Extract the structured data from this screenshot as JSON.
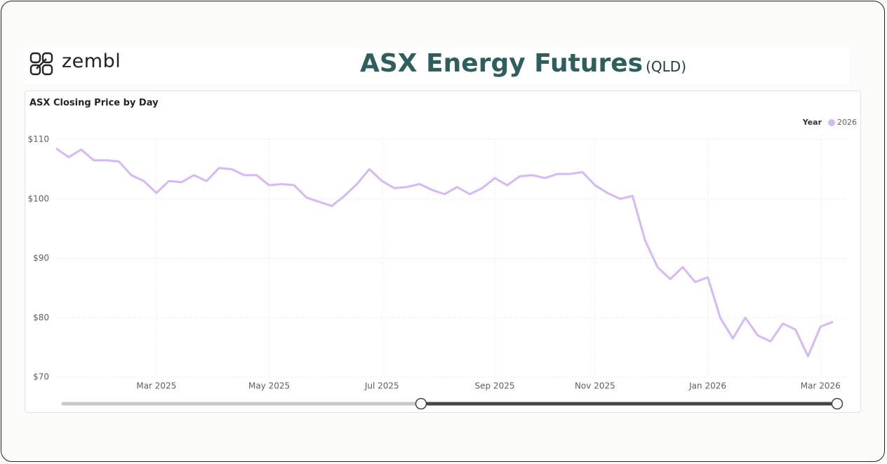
{
  "header": {
    "logo": "zembl",
    "title": "ASX Energy Futures",
    "subtitle": "(QLD)"
  },
  "chart_data": {
    "type": "line",
    "title": "ASX Closing Price by Day",
    "legend_title": "Year",
    "legend": "top-right",
    "categories": [
      null,
      null,
      null,
      null,
      null,
      null,
      null,
      null,
      "Mar 2025",
      null,
      null,
      null,
      null,
      null,
      null,
      null,
      null,
      "May 2025",
      null,
      null,
      null,
      null,
      null,
      null,
      null,
      null,
      "Jul 2025",
      null,
      null,
      null,
      null,
      null,
      null,
      null,
      null,
      "Sep 2025",
      null,
      null,
      null,
      null,
      null,
      null,
      null,
      "Nov 2025",
      null,
      null,
      null,
      null,
      null,
      null,
      null,
      null,
      "Jan 2026",
      null,
      null,
      null,
      null,
      null,
      null,
      null,
      null,
      "Mar 2026",
      null
    ],
    "series": [
      {
        "name": "2026",
        "color": "#d4b8f7",
        "values": [
          108.5,
          107,
          108.3,
          106.5,
          106.5,
          106.3,
          104,
          103,
          101,
          103,
          102.8,
          104,
          103,
          105.2,
          105,
          104,
          104,
          102.3,
          102.5,
          102.3,
          100.2,
          99.5,
          98.8,
          100.5,
          102.5,
          105,
          103,
          101.8,
          102,
          102.5,
          101.5,
          100.8,
          102,
          100.8,
          101.8,
          103.5,
          102.3,
          103.8,
          104,
          103.5,
          104.2,
          104.2,
          104.5,
          102.3,
          101,
          100,
          100.5,
          93,
          88.5,
          86.5,
          88.5,
          86,
          86.8,
          80,
          76.5,
          80,
          77,
          76,
          79,
          78,
          73.5,
          78.5,
          79.3
        ]
      }
    ],
    "ylim": [
      70,
      110
    ],
    "yticks": [
      {
        "value": 70,
        "label": "$70"
      },
      {
        "value": 80,
        "label": "$80"
      },
      {
        "value": 90,
        "label": "$90"
      },
      {
        "value": 100,
        "label": "$100"
      },
      {
        "value": 110,
        "label": "$110"
      }
    ],
    "grid": true
  }
}
